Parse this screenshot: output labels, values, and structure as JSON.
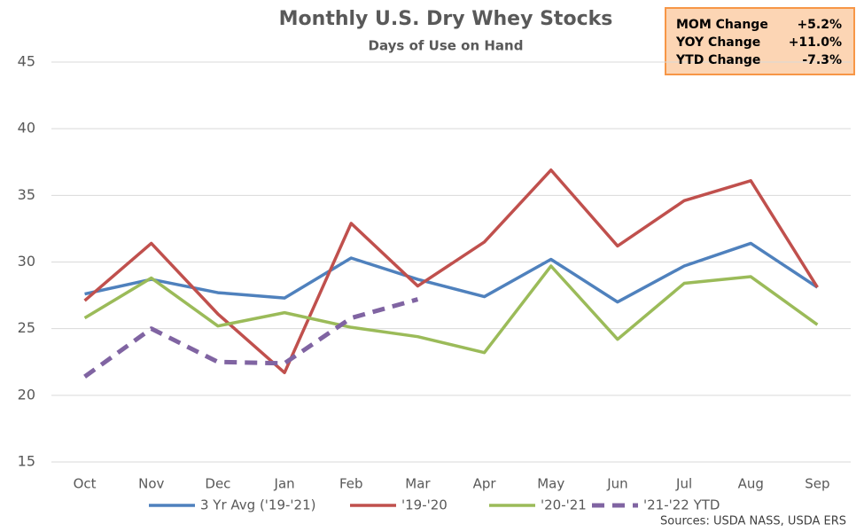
{
  "chart_data": {
    "type": "line",
    "title": "Monthly U.S. Dry Whey Stocks",
    "subtitle": "Days of Use on Hand",
    "categories": [
      "Oct",
      "Nov",
      "Dec",
      "Jan",
      "Feb",
      "Mar",
      "Apr",
      "May",
      "Jun",
      "Jul",
      "Aug",
      "Sep"
    ],
    "series": [
      {
        "name": "3 Yr Avg ('19-'21)",
        "color": "#4f81bd",
        "values": [
          27.6,
          28.7,
          27.7,
          27.3,
          30.3,
          28.7,
          27.4,
          30.2,
          27.0,
          29.7,
          31.4,
          28.1
        ]
      },
      {
        "name": "'19-'20",
        "color": "#c0504d",
        "values": [
          27.1,
          31.4,
          26.1,
          21.7,
          32.9,
          28.2,
          31.5,
          36.9,
          31.2,
          34.6,
          36.1,
          28.1
        ]
      },
      {
        "name": "'20-'21",
        "color": "#9bbb59",
        "values": [
          25.8,
          28.8,
          25.2,
          26.2,
          25.1,
          24.4,
          23.2,
          29.7,
          24.2,
          28.4,
          28.9,
          25.3
        ]
      },
      {
        "name": "'21-'22 YTD",
        "color": "#8064a2",
        "dashed": true,
        "values": [
          21.4,
          25.0,
          22.5,
          22.4,
          25.8,
          27.2,
          null,
          null,
          null,
          null,
          null,
          null
        ]
      }
    ],
    "ylim": [
      15,
      45
    ],
    "yticks": [
      15,
      20,
      25,
      30,
      35,
      40,
      45
    ],
    "grid": true,
    "legend": "bottom",
    "summary_box": [
      {
        "label": "MOM Change",
        "value": "+5.2%"
      },
      {
        "label": "YOY Change",
        "value": "+11.0%"
      },
      {
        "label": "YTD Change",
        "value": "-7.3%"
      }
    ],
    "source": "Sources: USDA NASS, USDA ERS"
  }
}
